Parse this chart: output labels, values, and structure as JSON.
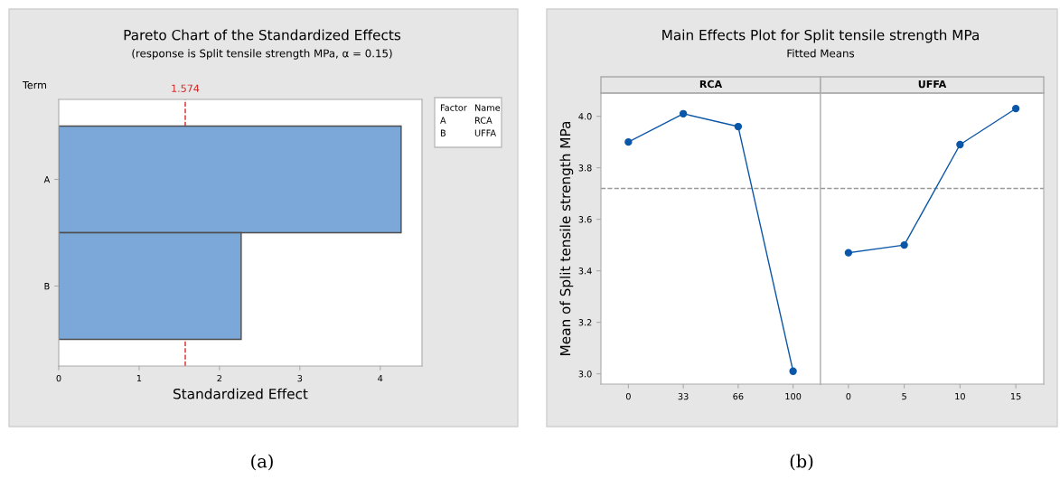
{
  "chart_data": [
    {
      "type": "bar",
      "orientation": "horizontal",
      "title": "Pareto Chart of the Standardized Effects",
      "subtitle": "(response is Split tensile strength MPa, α = 0.15)",
      "xlabel": "Standardized Effect",
      "ylabel": "Term",
      "categories": [
        "A",
        "B"
      ],
      "values": [
        4.26,
        2.27
      ],
      "color": "#7ba7d9",
      "xlim": [
        0,
        4.52
      ],
      "xticks": [
        0,
        1,
        2,
        3,
        4
      ],
      "ref_lines": [
        {
          "axis": "x",
          "value": 1.574,
          "label": "1.574",
          "color": "#d62728",
          "line_style": "dashed"
        }
      ],
      "annotations": [
        "Factor",
        "Name",
        "A",
        "RCA",
        "B",
        "UFFA",
        "(a)"
      ],
      "grid": false,
      "legend": false
    },
    {
      "type": "line",
      "title": "Main Effects Plot for Split tensile strength MPa",
      "subtitle": "Fitted Means",
      "xlabel": "RCA",
      "ylabel": "Mean of Split tensile strength MPa",
      "categories": [
        "0",
        "33",
        "66",
        "100"
      ],
      "values": [
        3.9,
        4.01,
        3.96,
        3.01
      ],
      "color": "#0a56a8",
      "ylim": [
        2.96,
        4.09
      ],
      "yticks": [
        {
          "value": 3,
          "label": "3.0"
        },
        3.2,
        3.4,
        3.6,
        3.8,
        {
          "value": 4,
          "label": "4.0"
        }
      ],
      "ref_lines": [
        {
          "axis": "y",
          "value": 3.72,
          "color": "#999999",
          "line_style": "dashed"
        }
      ],
      "annotations": [
        "(b)"
      ],
      "marker": "circle",
      "line_style": "solid",
      "grid": false,
      "legend": false
    },
    {
      "type": "line",
      "xlabel": "UFFA",
      "categories": [
        "0",
        "5",
        "10",
        "15"
      ],
      "values": [
        3.47,
        3.5,
        3.89,
        4.03
      ],
      "color": "#0a56a8",
      "ylim": [
        2.96,
        4.09
      ],
      "tick_labels": "x",
      "ref_lines": [
        {
          "axis": "y",
          "value": 3.72,
          "color": "#999999",
          "line_style": "dashed"
        }
      ],
      "marker": "circle",
      "line_style": "solid",
      "grid": false,
      "legend": false
    }
  ]
}
